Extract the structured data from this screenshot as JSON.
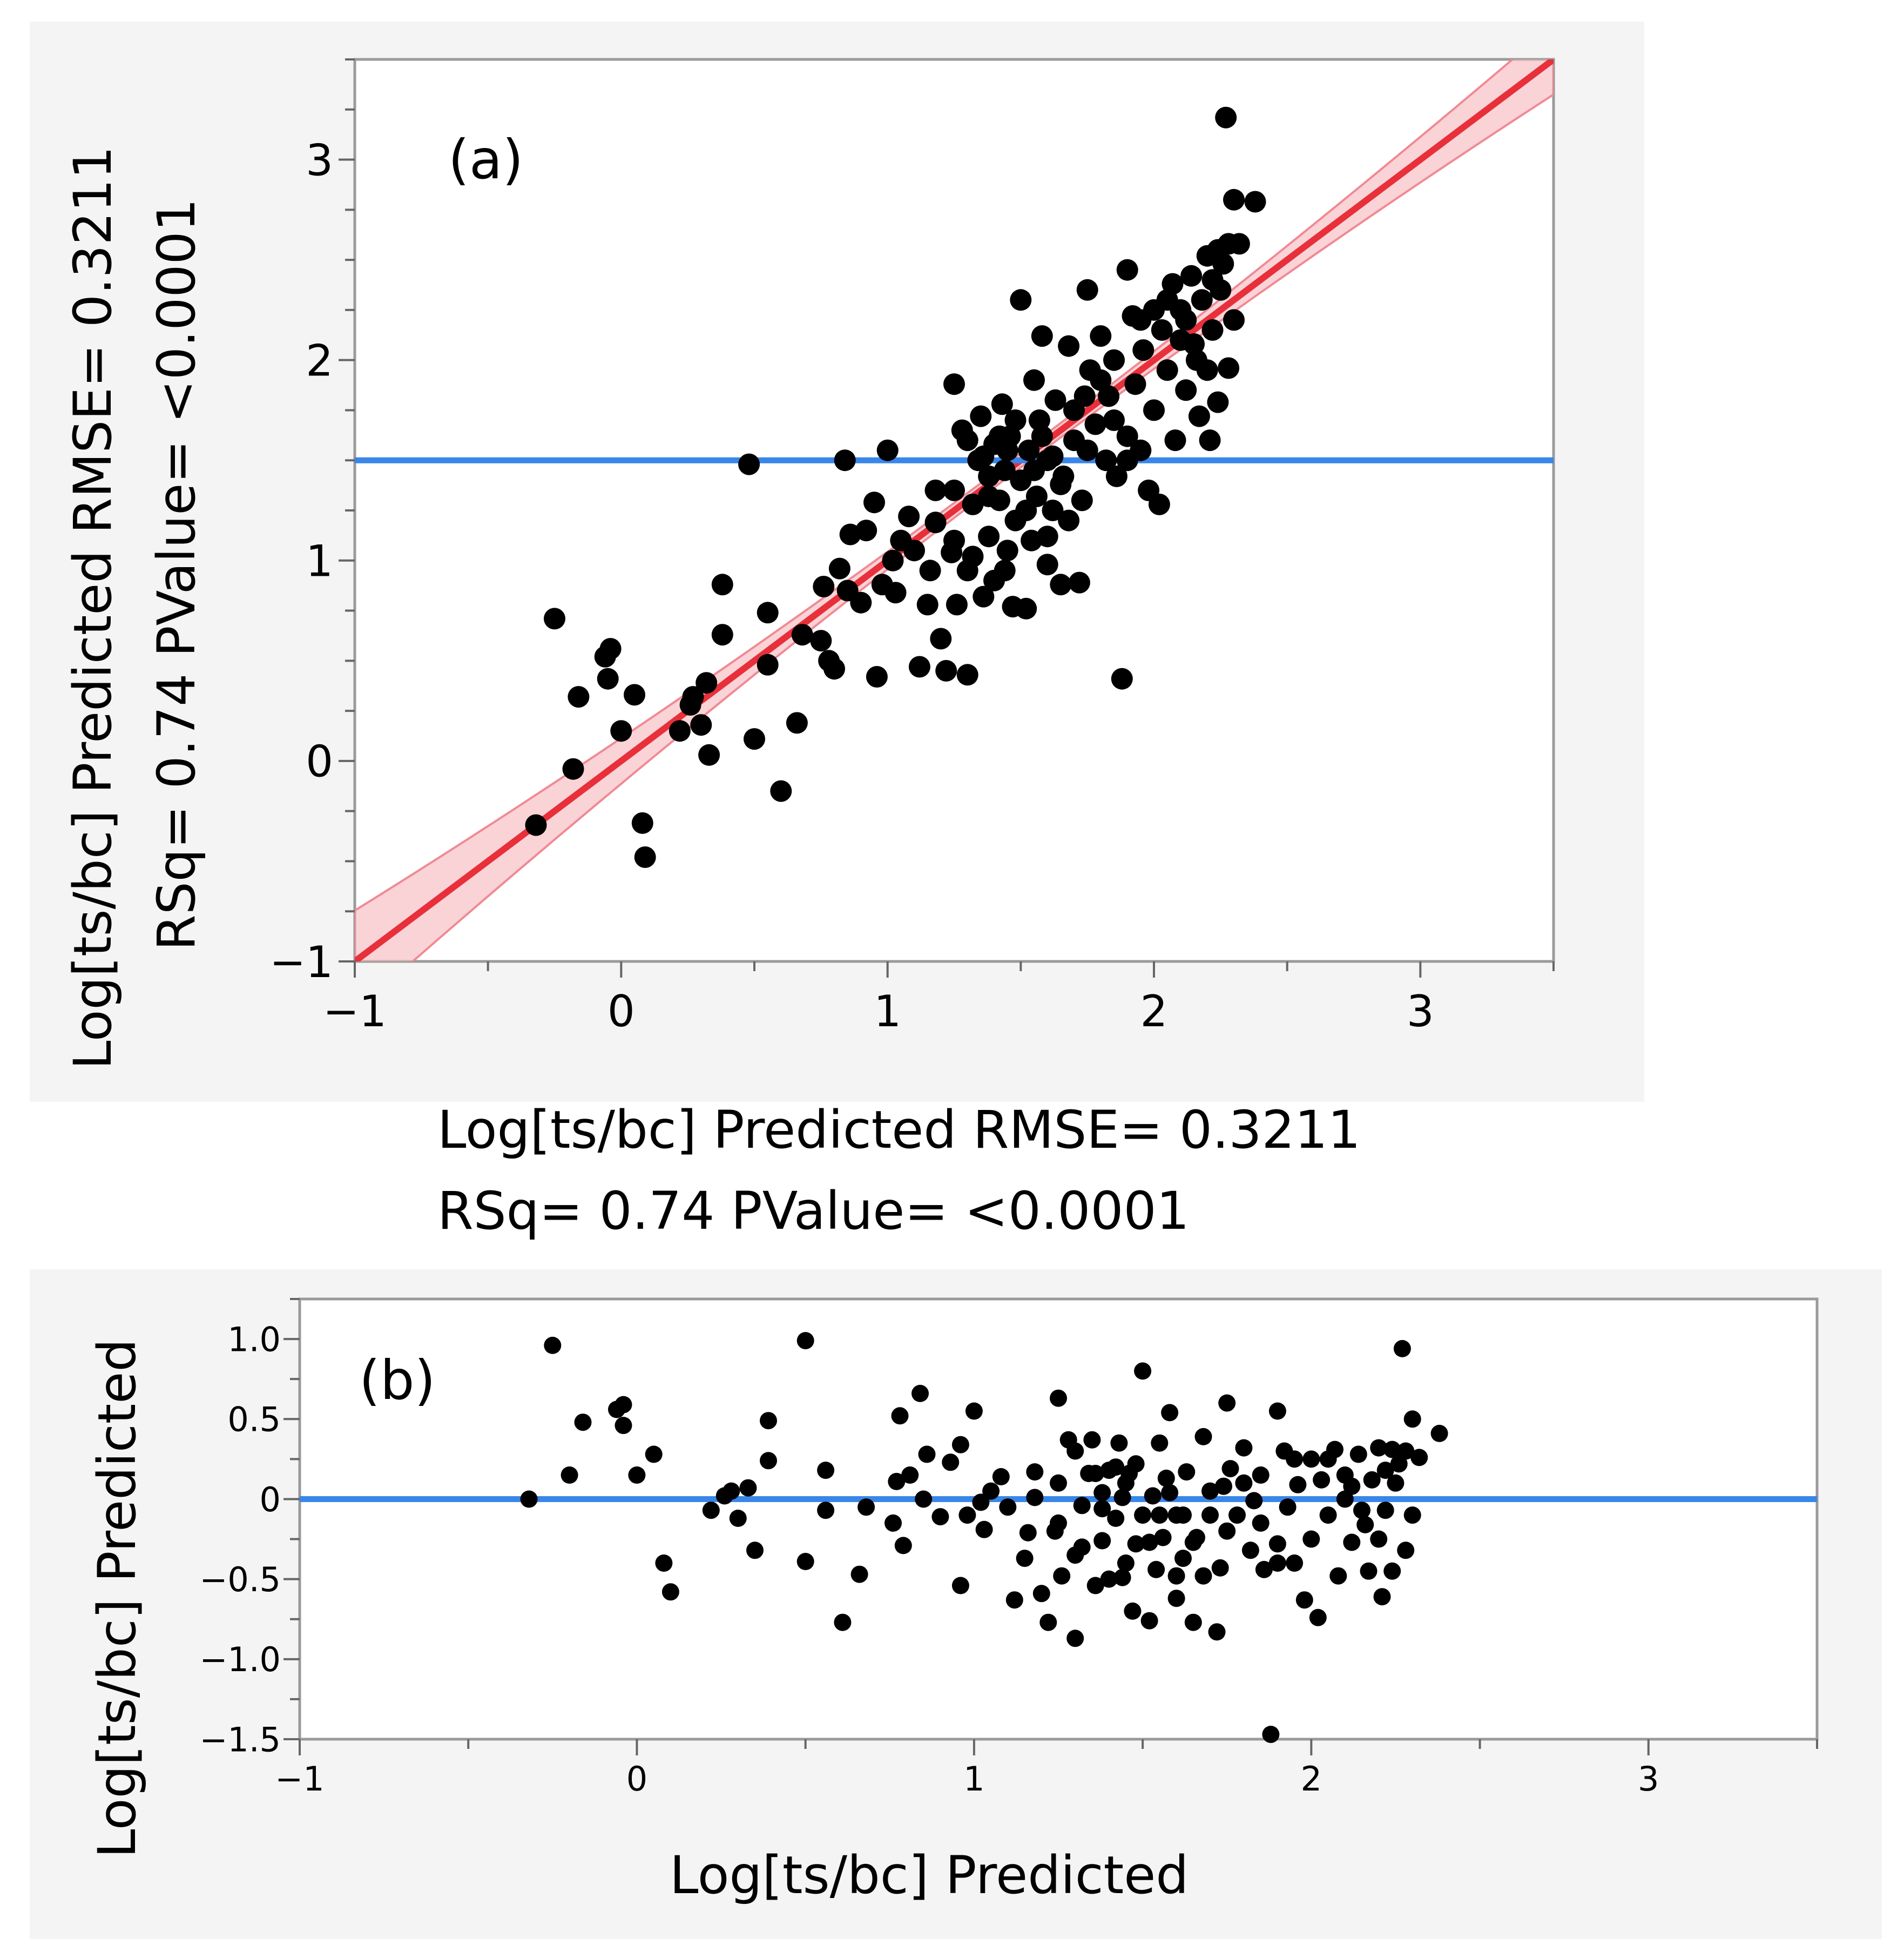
{
  "chart_data": [
    {
      "type": "scatter",
      "panel_label": "(a)",
      "xlabel_line1": "Log[ts/bc] Predicted RMSE= 0.3211",
      "xlabel_line2": "RSq= 0.74 PValue= <0.0001",
      "ylabel_line1": "Log[ts/bc] Predicted RMSE= 0.3211",
      "ylabel_line2": "RSq= 0.74 PValue= <0.0001",
      "xlim": [
        -1,
        3.5
      ],
      "ylim": [
        -1,
        3.5
      ],
      "xticks": [
        -1,
        0,
        1,
        2,
        3
      ],
      "xtick_labels": [
        "−1",
        "0",
        "1",
        "2",
        "3"
      ],
      "yticks": [
        -1,
        0,
        1,
        2,
        3
      ],
      "ytick_labels": [
        "−1",
        "0",
        "1",
        "2",
        "3"
      ],
      "mean_line": {
        "y": 1.5,
        "color": "#3a86e8"
      },
      "fit_line": {
        "intercept": 0,
        "slope": 1,
        "color": "#e8303a",
        "band_color": "#f7b6bc"
      },
      "point_color": "#000000",
      "points": [
        [
          -0.32,
          -0.32
        ],
        [
          -0.25,
          0.71
        ],
        [
          -0.18,
          -0.04
        ],
        [
          -0.16,
          0.32
        ],
        [
          -0.06,
          0.52
        ],
        [
          -0.05,
          0.41
        ],
        [
          -0.04,
          0.56
        ],
        [
          0.0,
          0.15
        ],
        [
          0.05,
          0.33
        ],
        [
          0.08,
          -0.31
        ],
        [
          0.09,
          -0.48
        ],
        [
          0.22,
          0.15
        ],
        [
          0.26,
          0.28
        ],
        [
          0.27,
          0.32
        ],
        [
          0.3,
          0.18
        ],
        [
          0.32,
          0.39
        ],
        [
          0.33,
          0.03
        ],
        [
          0.38,
          0.88
        ],
        [
          0.38,
          0.63
        ],
        [
          0.48,
          1.48
        ],
        [
          0.5,
          0.11
        ],
        [
          0.55,
          0.74
        ],
        [
          0.55,
          0.48
        ],
        [
          0.6,
          -0.15
        ],
        [
          0.66,
          0.19
        ],
        [
          0.68,
          0.63
        ],
        [
          0.75,
          0.6
        ],
        [
          0.76,
          0.87
        ],
        [
          0.78,
          0.5
        ],
        [
          0.8,
          0.46
        ],
        [
          0.82,
          0.96
        ],
        [
          0.84,
          1.5
        ],
        [
          0.85,
          0.85
        ],
        [
          0.86,
          1.13
        ],
        [
          0.9,
          0.79
        ],
        [
          0.92,
          1.15
        ],
        [
          0.95,
          1.29
        ],
        [
          0.96,
          0.42
        ],
        [
          0.98,
          0.88
        ],
        [
          1.0,
          1.55
        ],
        [
          1.02,
          1.0
        ],
        [
          1.03,
          0.84
        ],
        [
          1.05,
          1.1
        ],
        [
          1.08,
          1.22
        ],
        [
          1.1,
          1.05
        ],
        [
          1.12,
          0.47
        ],
        [
          1.15,
          0.78
        ],
        [
          1.16,
          0.95
        ],
        [
          1.18,
          1.19
        ],
        [
          1.2,
          0.61
        ],
        [
          1.22,
          0.45
        ],
        [
          1.24,
          1.04
        ],
        [
          1.25,
          1.88
        ],
        [
          1.25,
          1.35
        ],
        [
          1.26,
          0.78
        ],
        [
          1.28,
          1.65
        ],
        [
          1.3,
          0.43
        ],
        [
          1.3,
          0.95
        ],
        [
          1.32,
          1.28
        ],
        [
          1.34,
          1.5
        ],
        [
          1.35,
          1.72
        ],
        [
          1.36,
          0.82
        ],
        [
          1.38,
          1.42
        ],
        [
          1.38,
          1.12
        ],
        [
          1.4,
          1.58
        ],
        [
          1.4,
          0.9
        ],
        [
          1.42,
          1.3
        ],
        [
          1.43,
          1.78
        ],
        [
          1.44,
          1.45
        ],
        [
          1.45,
          1.05
        ],
        [
          1.46,
          1.62
        ],
        [
          1.47,
          0.77
        ],
        [
          1.48,
          1.2
        ],
        [
          1.5,
          2.3
        ],
        [
          1.5,
          1.4
        ],
        [
          1.52,
          0.76
        ],
        [
          1.53,
          1.55
        ],
        [
          1.54,
          1.1
        ],
        [
          1.55,
          1.9
        ],
        [
          1.56,
          1.32
        ],
        [
          1.57,
          1.7
        ],
        [
          1.58,
          2.12
        ],
        [
          1.6,
          1.5
        ],
        [
          1.6,
          0.98
        ],
        [
          1.62,
          1.25
        ],
        [
          1.63,
          1.8
        ],
        [
          1.65,
          0.88
        ],
        [
          1.66,
          1.42
        ],
        [
          1.68,
          2.07
        ],
        [
          1.7,
          1.6
        ],
        [
          1.72,
          0.89
        ],
        [
          1.73,
          1.3
        ],
        [
          1.75,
          2.35
        ],
        [
          1.76,
          1.95
        ],
        [
          1.78,
          1.68
        ],
        [
          1.8,
          2.12
        ],
        [
          1.82,
          1.5
        ],
        [
          1.83,
          1.82
        ],
        [
          1.85,
          2.0
        ],
        [
          1.86,
          1.42
        ],
        [
          1.88,
          0.41
        ],
        [
          1.9,
          2.45
        ],
        [
          1.9,
          1.62
        ],
        [
          1.92,
          2.22
        ],
        [
          1.93,
          1.88
        ],
        [
          1.95,
          1.55
        ],
        [
          1.96,
          2.05
        ],
        [
          1.98,
          1.35
        ],
        [
          2.0,
          1.75
        ],
        [
          2.02,
          1.28
        ],
        [
          2.03,
          2.15
        ],
        [
          2.05,
          1.95
        ],
        [
          2.07,
          2.38
        ],
        [
          2.08,
          1.6
        ],
        [
          2.1,
          2.25
        ],
        [
          2.12,
          1.85
        ],
        [
          2.14,
          2.42
        ],
        [
          2.15,
          2.08
        ],
        [
          2.17,
          1.72
        ],
        [
          2.18,
          2.3
        ],
        [
          2.2,
          2.52
        ],
        [
          2.2,
          1.95
        ],
        [
          2.21,
          1.6
        ],
        [
          2.22,
          2.15
        ],
        [
          2.24,
          2.55
        ],
        [
          2.24,
          1.79
        ],
        [
          2.25,
          2.35
        ],
        [
          2.26,
          2.48
        ],
        [
          2.27,
          3.21
        ],
        [
          2.28,
          2.58
        ],
        [
          2.28,
          1.96
        ],
        [
          2.3,
          2.2
        ],
        [
          2.3,
          2.8
        ],
        [
          2.32,
          2.58
        ],
        [
          2.38,
          2.79
        ],
        [
          1.3,
          1.6
        ],
        [
          1.45,
          1.55
        ],
        [
          1.55,
          1.45
        ],
        [
          1.65,
          1.38
        ],
        [
          1.42,
          1.62
        ],
        [
          1.48,
          1.7
        ],
        [
          1.36,
          1.52
        ],
        [
          1.58,
          1.62
        ],
        [
          1.52,
          1.25
        ],
        [
          1.38,
          1.32
        ],
        [
          1.62,
          1.52
        ],
        [
          1.7,
          1.75
        ],
        [
          1.75,
          1.55
        ],
        [
          1.8,
          1.9
        ],
        [
          1.85,
          1.7
        ],
        [
          1.95,
          2.2
        ],
        [
          2.0,
          2.25
        ],
        [
          2.05,
          2.3
        ],
        [
          2.12,
          2.2
        ],
        [
          2.16,
          2.0
        ],
        [
          2.22,
          2.4
        ],
        [
          1.25,
          1.1
        ],
        [
          1.18,
          1.35
        ],
        [
          1.32,
          1.02
        ],
        [
          1.44,
          0.95
        ],
        [
          1.6,
          1.12
        ],
        [
          1.68,
          1.2
        ],
        [
          1.9,
          1.5
        ],
        [
          2.1,
          2.1
        ],
        [
          1.74,
          1.82
        ]
      ]
    },
    {
      "type": "scatter",
      "panel_label": "(b)",
      "xlabel": "Log[ts/bc] Predicted",
      "ylabel": "Log[ts/bc] Predicted",
      "xlim": [
        -1,
        3.5
      ],
      "ylim": [
        -1.5,
        1.25
      ],
      "xticks": [
        -1,
        0,
        1,
        2,
        3
      ],
      "xtick_labels": [
        "−1",
        "0",
        "1",
        "2",
        "3"
      ],
      "yticks": [
        1.0,
        0.5,
        0,
        -0.5,
        -1.0,
        -1.5
      ],
      "ytick_labels": [
        "1.0",
        "0.5",
        "0",
        "−0.5",
        "−1.0",
        "−1.5"
      ],
      "mean_line": {
        "y": 0,
        "color": "#3a86e8"
      },
      "point_color": "#000000",
      "points": [
        [
          -0.32,
          0.0
        ],
        [
          -0.25,
          0.96
        ],
        [
          -0.2,
          0.15
        ],
        [
          -0.16,
          0.48
        ],
        [
          -0.06,
          0.56
        ],
        [
          -0.04,
          0.59
        ],
        [
          -0.04,
          0.46
        ],
        [
          0.0,
          0.15
        ],
        [
          0.05,
          0.28
        ],
        [
          0.08,
          -0.4
        ],
        [
          0.1,
          -0.58
        ],
        [
          0.22,
          -0.07
        ],
        [
          0.26,
          0.02
        ],
        [
          0.28,
          0.05
        ],
        [
          0.3,
          -0.12
        ],
        [
          0.33,
          0.07
        ],
        [
          0.35,
          -0.32
        ],
        [
          0.39,
          0.49
        ],
        [
          0.39,
          0.24
        ],
        [
          0.5,
          0.99
        ],
        [
          0.5,
          -0.39
        ],
        [
          0.56,
          0.18
        ],
        [
          0.56,
          -0.07
        ],
        [
          0.61,
          -0.77
        ],
        [
          0.66,
          -0.47
        ],
        [
          0.68,
          -0.05
        ],
        [
          0.76,
          -0.15
        ],
        [
          0.77,
          0.11
        ],
        [
          0.78,
          0.52
        ],
        [
          0.79,
          -0.29
        ],
        [
          0.81,
          0.15
        ],
        [
          0.84,
          0.66
        ],
        [
          0.85,
          0.0
        ],
        [
          0.86,
          0.28
        ],
        [
          0.9,
          -0.11
        ],
        [
          0.93,
          0.23
        ],
        [
          0.96,
          0.34
        ],
        [
          0.96,
          -0.54
        ],
        [
          0.98,
          -0.1
        ],
        [
          1.0,
          0.55
        ],
        [
          1.02,
          -0.02
        ],
        [
          1.03,
          -0.19
        ],
        [
          1.05,
          0.05
        ],
        [
          1.08,
          0.14
        ],
        [
          1.1,
          -0.05
        ],
        [
          1.12,
          -0.63
        ],
        [
          1.15,
          -0.37
        ],
        [
          1.16,
          -0.21
        ],
        [
          1.18,
          0.01
        ],
        [
          1.2,
          -0.59
        ],
        [
          1.22,
          -0.77
        ],
        [
          1.24,
          -0.2
        ],
        [
          1.25,
          0.63
        ],
        [
          1.25,
          0.1
        ],
        [
          1.26,
          -0.48
        ],
        [
          1.28,
          0.37
        ],
        [
          1.3,
          -0.87
        ],
        [
          1.3,
          -0.35
        ],
        [
          1.32,
          -0.04
        ],
        [
          1.34,
          0.16
        ],
        [
          1.35,
          0.37
        ],
        [
          1.36,
          -0.54
        ],
        [
          1.38,
          0.04
        ],
        [
          1.38,
          -0.26
        ],
        [
          1.4,
          0.18
        ],
        [
          1.4,
          -0.5
        ],
        [
          1.42,
          -0.12
        ],
        [
          1.43,
          0.35
        ],
        [
          1.44,
          0.01
        ],
        [
          1.45,
          -0.4
        ],
        [
          1.46,
          0.16
        ],
        [
          1.47,
          -0.7
        ],
        [
          1.48,
          -0.28
        ],
        [
          1.5,
          0.8
        ],
        [
          1.5,
          -0.1
        ],
        [
          1.52,
          -0.76
        ],
        [
          1.53,
          0.02
        ],
        [
          1.54,
          -0.44
        ],
        [
          1.55,
          0.35
        ],
        [
          1.56,
          -0.24
        ],
        [
          1.57,
          0.13
        ],
        [
          1.58,
          0.54
        ],
        [
          1.6,
          -0.1
        ],
        [
          1.6,
          -0.62
        ],
        [
          1.62,
          -0.37
        ],
        [
          1.63,
          0.17
        ],
        [
          1.65,
          -0.77
        ],
        [
          1.66,
          -0.24
        ],
        [
          1.68,
          0.39
        ],
        [
          1.7,
          -0.1
        ],
        [
          1.72,
          -0.83
        ],
        [
          1.73,
          -0.43
        ],
        [
          1.75,
          0.6
        ],
        [
          1.76,
          0.19
        ],
        [
          1.78,
          -0.1
        ],
        [
          1.8,
          0.32
        ],
        [
          1.82,
          -0.32
        ],
        [
          1.83,
          -0.01
        ],
        [
          1.85,
          0.15
        ],
        [
          1.86,
          -0.44
        ],
        [
          1.88,
          -1.47
        ],
        [
          1.9,
          0.55
        ],
        [
          1.9,
          -0.28
        ],
        [
          1.92,
          0.3
        ],
        [
          1.93,
          -0.05
        ],
        [
          1.95,
          -0.4
        ],
        [
          1.96,
          0.09
        ],
        [
          1.98,
          -0.63
        ],
        [
          2.0,
          -0.25
        ],
        [
          2.02,
          -0.74
        ],
        [
          2.03,
          0.12
        ],
        [
          2.05,
          -0.1
        ],
        [
          2.07,
          0.31
        ],
        [
          2.08,
          -0.48
        ],
        [
          2.1,
          0.15
        ],
        [
          2.12,
          -0.27
        ],
        [
          2.14,
          0.28
        ],
        [
          2.15,
          -0.07
        ],
        [
          2.17,
          -0.45
        ],
        [
          2.18,
          0.12
        ],
        [
          2.2,
          0.32
        ],
        [
          2.2,
          -0.25
        ],
        [
          2.21,
          -0.61
        ],
        [
          2.22,
          -0.07
        ],
        [
          2.24,
          0.31
        ],
        [
          2.24,
          -0.45
        ],
        [
          2.25,
          0.1
        ],
        [
          2.26,
          0.22
        ],
        [
          2.27,
          0.94
        ],
        [
          2.28,
          0.3
        ],
        [
          2.28,
          -0.32
        ],
        [
          2.3,
          -0.1
        ],
        [
          2.3,
          0.5
        ],
        [
          2.32,
          0.26
        ],
        [
          2.38,
          0.41
        ],
        [
          1.3,
          0.3
        ],
        [
          1.45,
          0.1
        ],
        [
          1.55,
          -0.1
        ],
        [
          1.65,
          -0.27
        ],
        [
          1.42,
          0.2
        ],
        [
          1.48,
          0.22
        ],
        [
          1.36,
          0.16
        ],
        [
          1.58,
          0.04
        ],
        [
          1.52,
          -0.27
        ],
        [
          1.38,
          -0.06
        ],
        [
          1.62,
          -0.1
        ],
        [
          1.7,
          0.05
        ],
        [
          1.75,
          -0.2
        ],
        [
          1.8,
          0.1
        ],
        [
          1.85,
          -0.15
        ],
        [
          1.95,
          0.25
        ],
        [
          2.0,
          0.25
        ],
        [
          2.05,
          0.25
        ],
        [
          2.12,
          0.08
        ],
        [
          2.16,
          -0.16
        ],
        [
          2.22,
          0.18
        ],
        [
          1.25,
          -0.15
        ],
        [
          1.18,
          0.17
        ],
        [
          1.32,
          -0.3
        ],
        [
          1.44,
          -0.49
        ],
        [
          1.6,
          -0.48
        ],
        [
          1.68,
          -0.48
        ],
        [
          1.9,
          -0.4
        ],
        [
          2.1,
          0.0
        ],
        [
          1.74,
          0.08
        ]
      ]
    }
  ]
}
